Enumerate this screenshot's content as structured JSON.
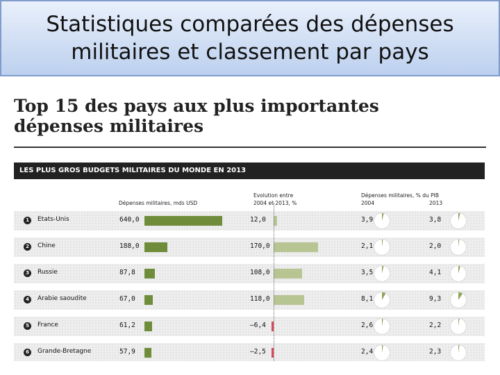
{
  "slide": {
    "title_line1": "Statistiques comparées des dépenses",
    "title_line2": "militaires et classement par pays"
  },
  "chart_data": {
    "type": "table",
    "title_line1": "Top 15 des pays aux plus importantes",
    "title_line2": "dépenses militaires",
    "banner": "LES PLUS GROS BUDGETS MILITAIRES DU MONDE EN 2013",
    "headers": {
      "spending": "Dépenses militaires, mds USD",
      "evolution_line1": "Evolution entre",
      "evolution_line2": "2004 et 2013, %",
      "gdp": "Dépenses militaires, % du PIB",
      "year_2004": "2004",
      "year_2013": "2013"
    },
    "spending_max": 640,
    "evolution_range": [
      -20,
      170
    ],
    "rows": [
      {
        "rank": "1",
        "country": "Etats-Unis",
        "spending": 640.0,
        "spending_label": "640,0",
        "evolution": 12.0,
        "evolution_label": "12,0",
        "gdp_2004": 3.9,
        "gdp_2004_label": "3,9",
        "gdp_2013": 3.8,
        "gdp_2013_label": "3,8"
      },
      {
        "rank": "2",
        "country": "Chine",
        "spending": 188.0,
        "spending_label": "188,0",
        "evolution": 170.0,
        "evolution_label": "170,0",
        "gdp_2004": 2.1,
        "gdp_2004_label": "2,1",
        "gdp_2013": 2.0,
        "gdp_2013_label": "2,0"
      },
      {
        "rank": "3",
        "country": "Russie",
        "spending": 87.8,
        "spending_label": "87,8",
        "evolution": 108.0,
        "evolution_label": "108,0",
        "gdp_2004": 3.5,
        "gdp_2004_label": "3,5",
        "gdp_2013": 4.1,
        "gdp_2013_label": "4,1"
      },
      {
        "rank": "4",
        "country": "Arabie saoudite",
        "spending": 67.0,
        "spending_label": "67,0",
        "evolution": 118.0,
        "evolution_label": "118,0",
        "gdp_2004": 8.1,
        "gdp_2004_label": "8,1",
        "gdp_2013": 9.3,
        "gdp_2013_label": "9,3"
      },
      {
        "rank": "5",
        "country": "France",
        "spending": 61.2,
        "spending_label": "61,2",
        "evolution": -6.4,
        "evolution_label": "–6,4",
        "gdp_2004": 2.6,
        "gdp_2004_label": "2,6",
        "gdp_2013": 2.2,
        "gdp_2013_label": "2,2"
      },
      {
        "rank": "6",
        "country": "Grande-Bretagne",
        "spending": 57.9,
        "spending_label": "57,9",
        "evolution": -2.5,
        "evolution_label": "–2,5",
        "gdp_2004": 2.4,
        "gdp_2004_label": "2,4",
        "gdp_2013": 2.3,
        "gdp_2013_label": "2,3"
      }
    ],
    "colors": {
      "spending": "#6e8c3a",
      "evolution_pos": "#b7c592",
      "evolution_neg": "#d9485a",
      "pie_fill": "#8ea55a"
    }
  }
}
